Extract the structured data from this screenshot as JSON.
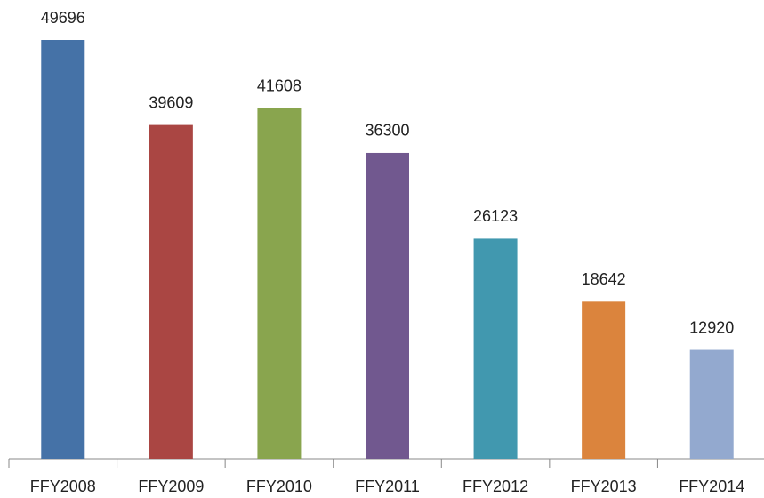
{
  "chart_data": {
    "type": "bar",
    "categories": [
      "FFY2008",
      "FFY2009",
      "FFY2010",
      "FFY2011",
      "FFY2012",
      "FFY2013",
      "FFY2014"
    ],
    "values": [
      49696,
      39609,
      41608,
      36300,
      26123,
      18642,
      12920
    ],
    "colors": [
      "#4572a7",
      "#aa4643",
      "#89a54e",
      "#71588f",
      "#4198af",
      "#db843d",
      "#93a9cf"
    ]
  }
}
